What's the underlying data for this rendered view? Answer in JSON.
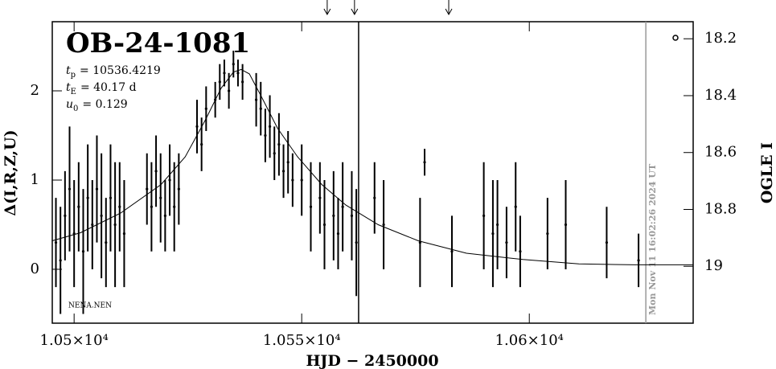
{
  "chart_data": {
    "type": "scatter",
    "title": "OB-24-1081",
    "params": [
      {
        "symbol": "t",
        "sub": "p",
        "text": "= 10536.4219"
      },
      {
        "symbol": "t",
        "sub": "E",
        "text": "= 40.17 d"
      },
      {
        "symbol": "u",
        "sub": "0",
        "text": "= 0.129"
      }
    ],
    "xlabel": "HJD − 2450000",
    "ylabel": "Δ(I,R,Z,U)",
    "y2label": "OGLE I",
    "timestamp": "Mon Nov 11 16:02:26 2024 UT",
    "footnote": "NENA.NEN",
    "xlim": [
      10495.2,
      10636.0
    ],
    "ylim": [
      -0.604,
      2.775
    ],
    "y2lim": [
      19.2,
      18.14
    ],
    "xticks": [
      {
        "value": 10500,
        "label": "1.05×10⁴"
      },
      {
        "value": 10550,
        "label": "1.055×10⁴"
      },
      {
        "value": 10600,
        "label": "1.06×10⁴"
      }
    ],
    "yticks": [
      0,
      1,
      2
    ],
    "y2ticks": [
      18.2,
      18.4,
      18.6,
      18.8,
      19
    ],
    "x": [
      10496,
      10497,
      10498,
      10499,
      10500,
      10501,
      10502,
      10503,
      10504,
      10505,
      10506,
      10507,
      10508,
      10509,
      10510,
      10511,
      10516,
      10517,
      10518,
      10519,
      10520,
      10521,
      10522,
      10523,
      10527,
      10528,
      10529,
      10531,
      10532,
      10533,
      10534,
      10535,
      10536,
      10537,
      10540,
      10541,
      10542,
      10543,
      10544,
      10545,
      10546,
      10547,
      10548,
      10550,
      10552,
      10554,
      10555,
      10557,
      10558,
      10559,
      10561,
      10562,
      10566,
      10568,
      10576,
      10577,
      10583,
      10590,
      10592,
      10593,
      10595,
      10597,
      10598,
      10604,
      10608,
      10617,
      10624
    ],
    "series": [
      {
        "color": "#000000",
        "values": [
          0.3,
          0.1,
          0.6,
          0.9,
          0.4,
          0.7,
          0.2,
          0.8,
          0.5,
          0.9,
          0.6,
          0.3,
          0.8,
          0.5,
          0.7,
          0.4,
          0.9,
          0.7,
          1.1,
          0.8,
          0.6,
          1.0,
          0.7,
          0.9,
          1.6,
          1.4,
          1.8,
          1.9,
          2.1,
          2.2,
          2.0,
          2.3,
          2.2,
          2.1,
          1.9,
          1.8,
          1.5,
          1.6,
          1.3,
          1.4,
          1.1,
          1.2,
          1.0,
          1.0,
          0.7,
          0.8,
          0.5,
          0.6,
          0.4,
          0.7,
          0.6,
          0.3,
          0.8,
          0.5,
          0.3,
          1.2,
          0.2,
          0.6,
          0.4,
          0.5,
          0.3,
          0.7,
          0.2,
          0.4,
          0.5,
          0.3,
          0.1
        ],
        "errors": [
          0.5,
          0.6,
          0.5,
          0.7,
          0.6,
          0.5,
          0.7,
          0.6,
          0.5,
          0.6,
          0.7,
          0.5,
          0.6,
          0.7,
          0.5,
          0.6,
          0.4,
          0.5,
          0.4,
          0.5,
          0.4,
          0.4,
          0.5,
          0.4,
          0.3,
          0.3,
          0.25,
          0.2,
          0.2,
          0.15,
          0.2,
          0.15,
          0.15,
          0.2,
          0.3,
          0.3,
          0.3,
          0.35,
          0.3,
          0.35,
          0.3,
          0.35,
          0.3,
          0.4,
          0.5,
          0.4,
          0.5,
          0.5,
          0.4,
          0.5,
          0.5,
          0.6,
          0.4,
          0.5,
          0.5,
          0.15,
          0.4,
          0.6,
          0.6,
          0.5,
          0.4,
          0.5,
          0.4,
          0.4,
          0.5,
          0.4,
          0.3
        ]
      }
    ],
    "model": {
      "color": "#000000",
      "x": [
        10495.2,
        10501.4,
        10510.2,
        10519.1,
        10524.4,
        10528.8,
        10532.3,
        10535.0,
        10536.7,
        10538.5,
        10541.1,
        10544.7,
        10549.1,
        10554.4,
        10559.7,
        10566.8,
        10575.6,
        10586.2,
        10598.6,
        10610.9,
        10623.3,
        10636.0
      ],
      "values": [
        0.32,
        0.41,
        0.63,
        0.95,
        1.26,
        1.67,
        2.03,
        2.21,
        2.24,
        2.19,
        1.94,
        1.58,
        1.26,
        0.95,
        0.72,
        0.5,
        0.32,
        0.18,
        0.11,
        0.06,
        0.05,
        0.05
      ]
    },
    "arrows": [
      10555.6,
      10561.6,
      10582.3
    ],
    "vlines": [
      {
        "x": 10562.5,
        "color": "#000000"
      },
      {
        "x": 10625.6,
        "color": "#999999"
      }
    ]
  }
}
